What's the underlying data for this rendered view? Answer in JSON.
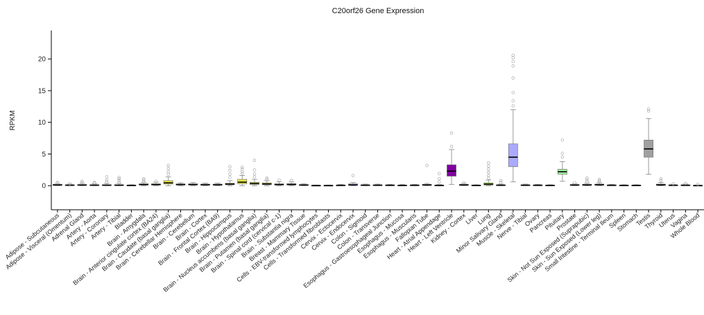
{
  "chart_data": {
    "type": "box",
    "title": "C20orf26 Gene Expression",
    "ylabel": "RPKM",
    "xlabel": "",
    "ylim": [
      -3.8,
      24.5
    ],
    "yticks": [
      0,
      5,
      10,
      15,
      20
    ],
    "grid": false,
    "categories": [
      "Adipose - Subcutaneous",
      "Adipose - Visceral (Omentum)",
      "Adrenal Gland",
      "Artery - Aorta",
      "Artery - Coronary",
      "Artery - Tibial",
      "Bladder",
      "Brain - Amygdala",
      "Brain - Anterior cingulate cortex (BA24)",
      "Brain - Caudate (basal ganglia)",
      "Brain - Cerebellar Hemisphere",
      "Brain - Cerebellum",
      "Brain - Cortex",
      "Brain - Frontal Cortex (BA9)",
      "Brain - Hippocampus",
      "Brain - Hypothalamus",
      "Brain - Nucleus accumbens (basal ganglia)",
      "Brain - Putamen (basal ganglia)",
      "Brain - Spinal cord (cervical c-1)",
      "Brain - Substantia nigra",
      "Breast - Mammary Tissue",
      "Cells - EBV-transformed lymphocytes",
      "Cells - Transformed fibroblasts",
      "Cervix - Ectocervix",
      "Cervix - Endocervix",
      "Colon - Sigmoid",
      "Colon - Transverse",
      "Esophagus - Gastroesophageal Junction",
      "Esophagus - Mucosa",
      "Esophagus - Muscularis",
      "Fallopian Tube",
      "Heart - Atrial Appendage",
      "Heart - Left Ventricle",
      "Kidney - Cortex",
      "Liver",
      "Lung",
      "Minor Salivary Gland",
      "Muscle - Skeletal",
      "Nerve - Tibial",
      "Ovary",
      "Pancreas",
      "Pituitary",
      "Prostate",
      "Skin - Not Sun Exposed (Suprapubic)",
      "Skin - Sun Exposed (Lower leg)",
      "Small Intestine - Terminal Ileum",
      "Spleen",
      "Stomach",
      "Testis",
      "Thyroid",
      "Uterus",
      "Vagina",
      "Whole Blood"
    ],
    "boxes": [
      {
        "q1": 0.05,
        "median": 0.12,
        "q3": 0.2,
        "whisker_low": 0,
        "whisker_high": 0.35,
        "outliers": [
          0.45,
          0.5
        ],
        "color": "#f0a860"
      },
      {
        "q1": 0.03,
        "median": 0.08,
        "q3": 0.14,
        "whisker_low": 0,
        "whisker_high": 0.25,
        "outliers": [
          0.3
        ],
        "color": "#f0a860"
      },
      {
        "q1": 0.05,
        "median": 0.1,
        "q3": 0.18,
        "whisker_low": 0,
        "whisker_high": 0.35,
        "outliers": [
          0.5,
          0.7
        ],
        "color": "#a8e070"
      },
      {
        "q1": 0.03,
        "median": 0.08,
        "q3": 0.15,
        "whisker_low": 0,
        "whisker_high": 0.3,
        "outliers": [
          0.4,
          0.5
        ],
        "color": "#f08080"
      },
      {
        "q1": 0.03,
        "median": 0.08,
        "q3": 0.15,
        "whisker_low": 0,
        "whisker_high": 0.35,
        "outliers": [
          0.6,
          0.9,
          1.4
        ],
        "color": "#f08080"
      },
      {
        "q1": 0.03,
        "median": 0.08,
        "q3": 0.15,
        "whisker_low": 0,
        "whisker_high": 0.35,
        "outliers": [
          0.5,
          0.8,
          1.1,
          1.3
        ],
        "color": "#f08080"
      },
      {
        "q1": 0.02,
        "median": 0.05,
        "q3": 0.1,
        "whisker_low": 0,
        "whisker_high": 0.15,
        "outliers": [],
        "color": "#c0c0c0"
      },
      {
        "q1": 0.1,
        "median": 0.18,
        "q3": 0.3,
        "whisker_low": 0,
        "whisker_high": 0.5,
        "outliers": [
          0.7,
          0.9,
          1.1
        ],
        "color": "#e8e840"
      },
      {
        "q1": 0.1,
        "median": 0.18,
        "q3": 0.3,
        "whisker_low": 0,
        "whisker_high": 0.55,
        "outliers": [
          0.7
        ],
        "color": "#e8e840"
      },
      {
        "q1": 0.25,
        "median": 0.45,
        "q3": 0.8,
        "whisker_low": 0,
        "whisker_high": 1.4,
        "outliers": [
          1.8,
          2.2,
          2.7,
          3.2
        ],
        "color": "#e8e840"
      },
      {
        "q1": 0.1,
        "median": 0.18,
        "q3": 0.28,
        "whisker_low": 0,
        "whisker_high": 0.45,
        "outliers": [],
        "color": "#e8e840"
      },
      {
        "q1": 0.1,
        "median": 0.18,
        "q3": 0.3,
        "whisker_low": 0,
        "whisker_high": 0.5,
        "outliers": [],
        "color": "#e8e840"
      },
      {
        "q1": 0.08,
        "median": 0.15,
        "q3": 0.25,
        "whisker_low": 0,
        "whisker_high": 0.4,
        "outliers": [],
        "color": "#e8e840"
      },
      {
        "q1": 0.08,
        "median": 0.15,
        "q3": 0.25,
        "whisker_low": 0,
        "whisker_high": 0.4,
        "outliers": [],
        "color": "#e8e840"
      },
      {
        "q1": 0.15,
        "median": 0.25,
        "q3": 0.4,
        "whisker_low": 0,
        "whisker_high": 0.8,
        "outliers": [
          1.3,
          1.8,
          2.4,
          3.0
        ],
        "color": "#e8e840"
      },
      {
        "q1": 0.3,
        "median": 0.55,
        "q3": 1.0,
        "whisker_low": 0,
        "whisker_high": 1.6,
        "outliers": [
          1.9,
          2.2,
          2.6,
          2.9
        ],
        "color": "#e8e840"
      },
      {
        "q1": 0.2,
        "median": 0.35,
        "q3": 0.55,
        "whisker_low": 0,
        "whisker_high": 1.0,
        "outliers": [
          1.4,
          1.9,
          2.5,
          4.0
        ],
        "color": "#e8e840"
      },
      {
        "q1": 0.15,
        "median": 0.28,
        "q3": 0.45,
        "whisker_low": 0,
        "whisker_high": 0.8,
        "outliers": [
          1.0,
          1.2
        ],
        "color": "#e8e840"
      },
      {
        "q1": 0.1,
        "median": 0.18,
        "q3": 0.3,
        "whisker_low": 0,
        "whisker_high": 0.6,
        "outliers": [
          0.9
        ],
        "color": "#e8e840"
      },
      {
        "q1": 0.1,
        "median": 0.2,
        "q3": 0.32,
        "whisker_low": 0,
        "whisker_high": 0.6,
        "outliers": [
          0.8
        ],
        "color": "#e8e840"
      },
      {
        "q1": 0.05,
        "median": 0.1,
        "q3": 0.18,
        "whisker_low": 0,
        "whisker_high": 0.3,
        "outliers": [],
        "color": "#40c0e0"
      },
      {
        "q1": 0.01,
        "median": 0.03,
        "q3": 0.06,
        "whisker_low": 0,
        "whisker_high": 0.1,
        "outliers": [],
        "color": "#c080e0"
      },
      {
        "q1": 0.01,
        "median": 0.03,
        "q3": 0.06,
        "whisker_low": 0,
        "whisker_high": 0.1,
        "outliers": [],
        "color": "#80c0f0"
      },
      {
        "q1": 0.03,
        "median": 0.06,
        "q3": 0.1,
        "whisker_low": 0,
        "whisker_high": 0.2,
        "outliers": [],
        "color": "#f0c0d0"
      },
      {
        "q1": 0.05,
        "median": 0.12,
        "q3": 0.3,
        "whisker_low": 0,
        "whisker_high": 0.5,
        "outliers": [
          1.6
        ],
        "color": "#b0b0ff"
      },
      {
        "q1": 0.03,
        "median": 0.08,
        "q3": 0.13,
        "whisker_low": 0,
        "whisker_high": 0.25,
        "outliers": [],
        "color": "#e0b090"
      },
      {
        "q1": 0.03,
        "median": 0.08,
        "q3": 0.13,
        "whisker_low": 0,
        "whisker_high": 0.25,
        "outliers": [],
        "color": "#e0b090"
      },
      {
        "q1": 0.03,
        "median": 0.07,
        "q3": 0.12,
        "whisker_low": 0,
        "whisker_high": 0.2,
        "outliers": [],
        "color": "#c0a080"
      },
      {
        "q1": 0.02,
        "median": 0.05,
        "q3": 0.1,
        "whisker_low": 0,
        "whisker_high": 0.18,
        "outliers": [],
        "color": "#c0a080"
      },
      {
        "q1": 0.03,
        "median": 0.07,
        "q3": 0.12,
        "whisker_low": 0,
        "whisker_high": 0.2,
        "outliers": [],
        "color": "#c0a080"
      },
      {
        "q1": 0.05,
        "median": 0.12,
        "q3": 0.2,
        "whisker_low": 0,
        "whisker_high": 0.35,
        "outliers": [
          3.2
        ],
        "color": "#f0c0d0"
      },
      {
        "q1": 0.02,
        "median": 0.05,
        "q3": 0.1,
        "whisker_low": 0,
        "whisker_high": 0.2,
        "outliers": [
          0.6,
          1.1,
          1.9
        ],
        "color": "#8020c0"
      },
      {
        "q1": 1.5,
        "median": 2.3,
        "q3": 3.3,
        "whisker_low": 0.2,
        "whisker_high": 5.7,
        "outliers": [
          6.2,
          8.3
        ],
        "color": "#8000a0"
      },
      {
        "q1": 0.05,
        "median": 0.12,
        "q3": 0.2,
        "whisker_low": 0,
        "whisker_high": 0.35,
        "outliers": [
          0.45
        ],
        "color": "#80e0c0"
      },
      {
        "q1": 0.02,
        "median": 0.05,
        "q3": 0.1,
        "whisker_low": 0,
        "whisker_high": 0.15,
        "outliers": [],
        "color": "#a0b060"
      },
      {
        "q1": 0.1,
        "median": 0.25,
        "q3": 0.45,
        "whisker_low": 0,
        "whisker_high": 0.9,
        "outliers": [
          1.2,
          1.6,
          2.1,
          2.6,
          3.1,
          3.6
        ],
        "color": "#a0f040"
      },
      {
        "q1": 0.03,
        "median": 0.08,
        "q3": 0.13,
        "whisker_low": 0,
        "whisker_high": 0.25,
        "outliers": [
          0.5,
          0.8
        ],
        "color": "#a0c0a0"
      },
      {
        "q1": 3.0,
        "median": 4.5,
        "q3": 6.6,
        "whisker_low": 0.6,
        "whisker_high": 12.0,
        "outliers": [
          12.6,
          13.4,
          14.7,
          17.0,
          18.9,
          19.6,
          20.2,
          20.6
        ],
        "color": "#aaaaff"
      },
      {
        "q1": 0.03,
        "median": 0.08,
        "q3": 0.13,
        "whisker_low": 0,
        "whisker_high": 0.25,
        "outliers": [],
        "color": "#f0d040"
      },
      {
        "q1": 0.03,
        "median": 0.07,
        "q3": 0.12,
        "whisker_low": 0,
        "whisker_high": 0.2,
        "outliers": [],
        "color": "#f0c0d0"
      },
      {
        "q1": 0.02,
        "median": 0.05,
        "q3": 0.1,
        "whisker_low": 0,
        "whisker_high": 0.15,
        "outliers": [],
        "color": "#a0a0a0"
      },
      {
        "q1": 1.8,
        "median": 2.2,
        "q3": 2.6,
        "whisker_low": 0.7,
        "whisker_high": 3.8,
        "outliers": [
          4.5,
          5.1,
          7.2
        ],
        "color": "#a0f0a0"
      },
      {
        "q1": 0.05,
        "median": 0.1,
        "q3": 0.18,
        "whisker_low": 0,
        "whisker_high": 0.3,
        "outliers": [
          0.45
        ],
        "color": "#d0d0d0"
      },
      {
        "q1": 0.05,
        "median": 0.12,
        "q3": 0.22,
        "whisker_low": 0,
        "whisker_high": 0.4,
        "outliers": [
          0.6,
          0.9,
          1.2
        ],
        "color": "#4060f0"
      },
      {
        "q1": 0.08,
        "median": 0.15,
        "q3": 0.25,
        "whisker_low": 0,
        "whisker_high": 0.45,
        "outliers": [
          0.6,
          0.8,
          1.0
        ],
        "color": "#6080f0"
      },
      {
        "q1": 0.03,
        "median": 0.07,
        "q3": 0.12,
        "whisker_low": 0,
        "whisker_high": 0.2,
        "outliers": [],
        "color": "#e0b090"
      },
      {
        "q1": 0.02,
        "median": 0.05,
        "q3": 0.1,
        "whisker_low": 0,
        "whisker_high": 0.15,
        "outliers": [],
        "color": "#80a060"
      },
      {
        "q1": 0.02,
        "median": 0.05,
        "q3": 0.1,
        "whisker_low": 0,
        "whisker_high": 0.15,
        "outliers": [],
        "color": "#f0d090"
      },
      {
        "q1": 4.5,
        "median": 5.8,
        "q3": 7.2,
        "whisker_low": 1.8,
        "whisker_high": 10.6,
        "outliers": [
          11.8,
          12.1
        ],
        "color": "#a0a0a0"
      },
      {
        "q1": 0.05,
        "median": 0.12,
        "q3": 0.25,
        "whisker_low": 0,
        "whisker_high": 0.5,
        "outliers": [
          0.8,
          1.1
        ],
        "color": "#208020"
      },
      {
        "q1": 0.03,
        "median": 0.07,
        "q3": 0.12,
        "whisker_low": 0,
        "whisker_high": 0.2,
        "outliers": [
          0.3
        ],
        "color": "#f080f0"
      },
      {
        "q1": 0.03,
        "median": 0.07,
        "q3": 0.12,
        "whisker_low": 0,
        "whisker_high": 0.25,
        "outliers": [
          0.35
        ],
        "color": "#f080c0"
      },
      {
        "q1": 0.01,
        "median": 0.03,
        "q3": 0.06,
        "whisker_low": 0,
        "whisker_high": 0.1,
        "outliers": [
          0.2
        ],
        "color": "#e060e0"
      }
    ]
  }
}
